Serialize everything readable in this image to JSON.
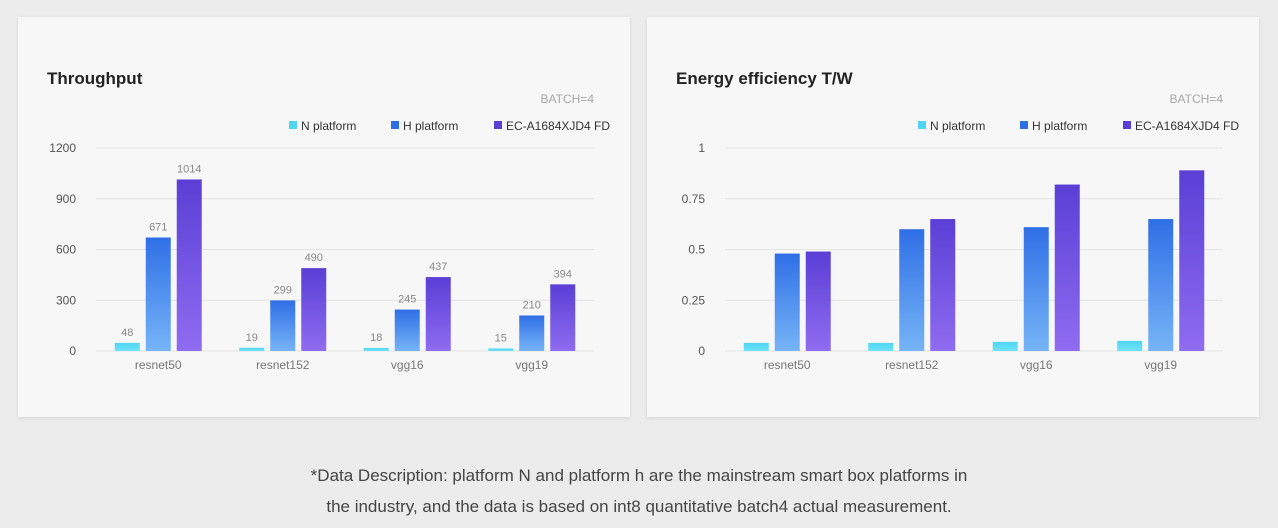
{
  "chart_data": [
    {
      "type": "bar",
      "title": "Throughput",
      "annotation": "BATCH=4",
      "categories": [
        "resnet50",
        "resnet152",
        "vgg16",
        "vgg19"
      ],
      "series": [
        {
          "name": "N platform",
          "values": [
            48,
            19,
            18,
            15
          ],
          "color_top": "#4fd5f2",
          "color_bottom": "#6fe3fa"
        },
        {
          "name": "H platform",
          "values": [
            671,
            299,
            245,
            210
          ],
          "color_top": "#2f6fe6",
          "color_bottom": "#76b4f7"
        },
        {
          "name": "EC-A1684XJD4 FD",
          "values": [
            1014,
            490,
            437,
            394
          ],
          "color_top": "#5a3fd6",
          "color_bottom": "#8f6cf0"
        }
      ],
      "yticks": [
        "0",
        "300",
        "600",
        "900",
        "1200"
      ],
      "ylim": [
        0,
        1200
      ],
      "data_labels": true,
      "grid": true,
      "legend": "top-right"
    },
    {
      "type": "bar",
      "title": "Energy efficiency  T/W",
      "annotation": "BATCH=4",
      "categories": [
        "resnet50",
        "resnet152",
        "vgg16",
        "vgg19"
      ],
      "series": [
        {
          "name": "N platform",
          "values": [
            0.04,
            0.04,
            0.045,
            0.05
          ],
          "color_top": "#4fd5f2",
          "color_bottom": "#6fe3fa"
        },
        {
          "name": "H platform",
          "values": [
            0.48,
            0.6,
            0.61,
            0.65
          ],
          "color_top": "#2f6fe6",
          "color_bottom": "#76b4f7"
        },
        {
          "name": "EC-A1684XJD4 FD",
          "values": [
            0.49,
            0.65,
            0.82,
            0.89
          ],
          "color_top": "#5a3fd6",
          "color_bottom": "#8f6cf0"
        }
      ],
      "yticks": [
        "0",
        "0.25",
        "0.5",
        "0.75",
        "1"
      ],
      "ylim": [
        0,
        1
      ],
      "data_labels": false,
      "grid": true,
      "legend": "top-right"
    }
  ],
  "description": {
    "line1": "*Data Description: platform N and platform h are the mainstream smart box platforms in",
    "line2": "the industry, and the data is based on int8 quantitative batch4 actual measurement."
  }
}
